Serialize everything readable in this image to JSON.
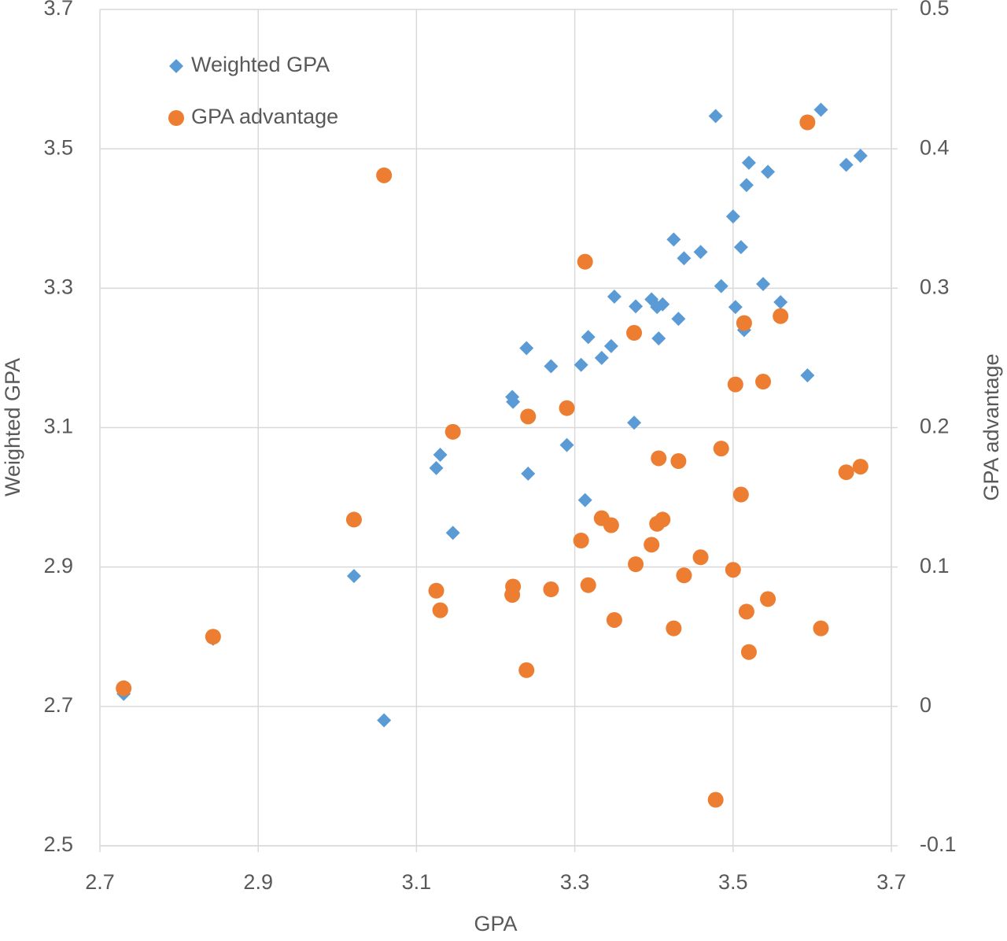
{
  "chart_data": {
    "type": "scatter",
    "x_label": "GPA",
    "y_label": "Weighted GPA",
    "y2_label": "GPA advantage",
    "x": [
      2.73,
      2.843,
      3.021,
      3.059,
      3.125,
      3.13,
      3.146,
      3.221,
      3.222,
      3.239,
      3.241,
      3.27,
      3.29,
      3.308,
      3.313,
      3.317,
      3.334,
      3.346,
      3.35,
      3.375,
      3.377,
      3.397,
      3.404,
      3.411,
      3.406,
      3.425,
      3.431,
      3.438,
      3.459,
      3.478,
      3.485,
      3.5,
      3.503,
      3.51,
      3.514,
      3.517,
      3.52,
      3.538,
      3.544,
      3.56,
      3.594,
      3.611,
      3.643,
      3.661
    ],
    "series": [
      {
        "name": "Weighted GPA",
        "color": "#5b9bd5",
        "marker": "diamond",
        "axis": "y",
        "values": [
          2.718,
          2.797,
          2.887,
          2.68,
          3.042,
          3.061,
          2.949,
          3.144,
          3.137,
          3.214,
          3.034,
          3.188,
          3.075,
          3.19,
          2.996,
          3.23,
          3.2,
          3.217,
          3.288,
          3.107,
          3.274,
          3.284,
          3.273,
          3.277,
          3.228,
          3.37,
          3.256,
          3.343,
          3.352,
          3.547,
          3.303,
          3.403,
          3.273,
          3.359,
          3.24,
          3.448,
          3.48,
          3.306,
          3.467,
          3.28,
          3.175,
          3.556,
          3.477,
          3.49
        ]
      },
      {
        "name": "GPA advantage",
        "color": "#ed7d31",
        "marker": "circle",
        "axis": "y2",
        "values": [
          0.013,
          0.05,
          0.134,
          0.381,
          0.083,
          0.069,
          0.197,
          0.08,
          0.086,
          0.026,
          0.208,
          0.084,
          0.214,
          0.119,
          0.319,
          0.087,
          0.135,
          0.13,
          0.062,
          0.268,
          0.102,
          0.116,
          0.131,
          0.134,
          0.178,
          0.056,
          0.176,
          0.094,
          0.107,
          -0.067,
          0.185,
          0.098,
          0.231,
          0.152,
          0.275,
          0.068,
          0.039,
          0.233,
          0.077,
          0.28,
          0.419,
          0.056,
          0.168,
          0.172
        ]
      }
    ],
    "xlim": [
      2.7,
      3.7
    ],
    "xticks": [
      2.7,
      2.9,
      3.1,
      3.3,
      3.5,
      3.7
    ],
    "ylim": [
      2.5,
      3.7
    ],
    "yticks": [
      2.5,
      2.7,
      2.9,
      3.1,
      3.3,
      3.5,
      3.7
    ],
    "y2lim": [
      -0.1,
      0.5
    ],
    "y2ticks": [
      -0.1,
      0,
      0.1,
      0.2,
      0.3,
      0.4,
      0.5
    ],
    "grid": true,
    "legend": "top-left"
  }
}
